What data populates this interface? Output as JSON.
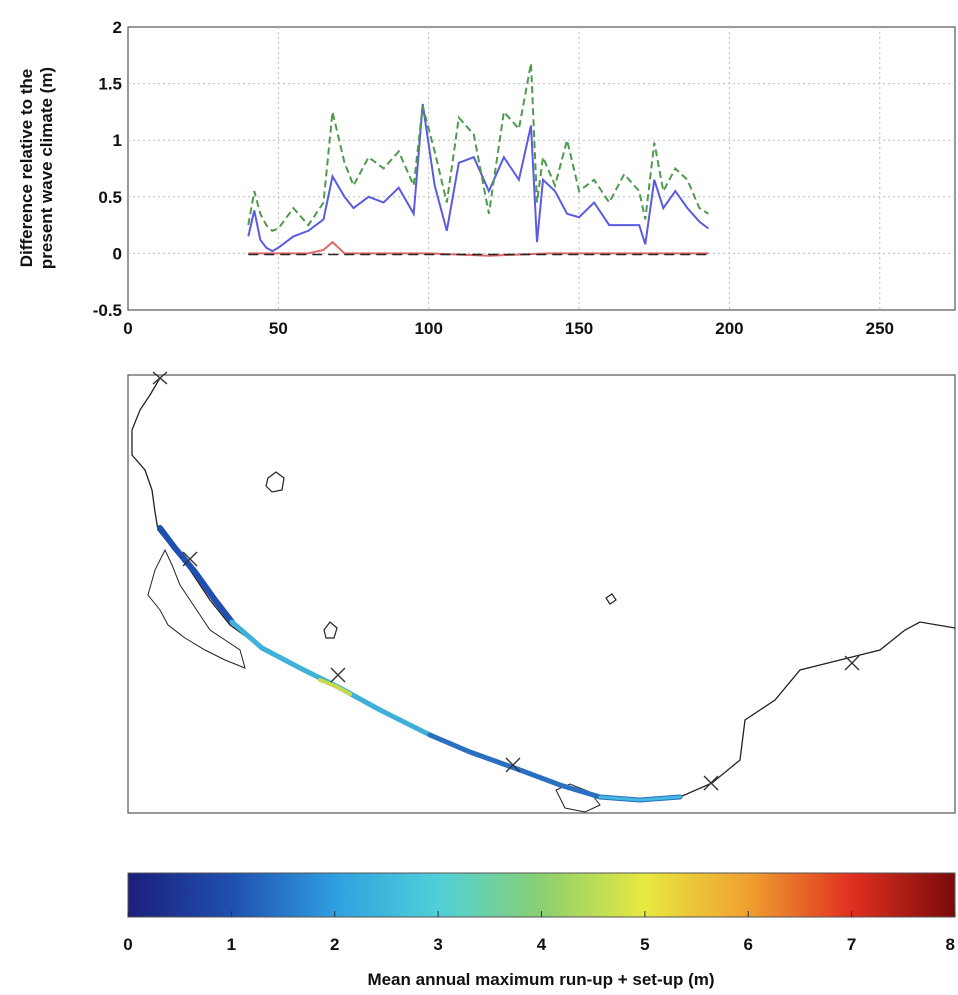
{
  "chart_data": [
    {
      "type": "line",
      "ylabel_lines": [
        "Difference relative to the",
        "present wave climate (m)"
      ],
      "xlim": [
        0,
        275
      ],
      "ylim": [
        -0.5,
        2
      ],
      "xticks": [
        0,
        50,
        100,
        150,
        200,
        250
      ],
      "yticks": [
        -0.5,
        0,
        0.5,
        1,
        1.5,
        2
      ],
      "ytick_labels": [
        "-0.5",
        "0",
        "0.5",
        "1",
        "1.5",
        "2"
      ],
      "grid": true,
      "series": [
        {
          "color": "#5b5be0",
          "style": "solid",
          "x": [
            40,
            42,
            44,
            46,
            48,
            50,
            55,
            60,
            65,
            68,
            72,
            75,
            80,
            85,
            90,
            95,
            98,
            102,
            106,
            110,
            115,
            120,
            125,
            130,
            134,
            136,
            138,
            142,
            146,
            150,
            155,
            160,
            165,
            170,
            172,
            175,
            178,
            182,
            186,
            190,
            193
          ],
          "y": [
            0.15,
            0.38,
            0.12,
            0.05,
            0.02,
            0.05,
            0.15,
            0.2,
            0.3,
            0.68,
            0.5,
            0.4,
            0.5,
            0.45,
            0.58,
            0.35,
            1.32,
            0.6,
            0.2,
            0.8,
            0.85,
            0.55,
            0.85,
            0.65,
            1.13,
            0.1,
            0.65,
            0.55,
            0.35,
            0.32,
            0.45,
            0.25,
            0.25,
            0.25,
            0.08,
            0.65,
            0.4,
            0.55,
            0.4,
            0.28,
            0.22
          ]
        },
        {
          "color": "#4f9a4f",
          "style": "dashed",
          "x": [
            40,
            42,
            44,
            46,
            48,
            50,
            55,
            60,
            65,
            68,
            72,
            75,
            80,
            85,
            90,
            95,
            98,
            102,
            106,
            110,
            115,
            120,
            125,
            130,
            134,
            136,
            138,
            142,
            146,
            150,
            155,
            160,
            165,
            170,
            172,
            175,
            178,
            182,
            186,
            190,
            193
          ],
          "y": [
            0.25,
            0.55,
            0.35,
            0.25,
            0.2,
            0.22,
            0.4,
            0.25,
            0.45,
            1.25,
            0.8,
            0.6,
            0.85,
            0.75,
            0.9,
            0.6,
            1.3,
            0.9,
            0.45,
            1.2,
            1.05,
            0.35,
            1.25,
            1.1,
            1.68,
            0.45,
            0.85,
            0.6,
            1.0,
            0.55,
            0.65,
            0.45,
            0.7,
            0.55,
            0.3,
            0.98,
            0.55,
            0.75,
            0.65,
            0.4,
            0.35
          ]
        },
        {
          "color": "#e06a6a",
          "style": "solid",
          "x": [
            40,
            50,
            60,
            65,
            68,
            72,
            80,
            100,
            120,
            140,
            160,
            180,
            193
          ],
          "y": [
            0.0,
            0.0,
            0.0,
            0.03,
            0.1,
            0.0,
            0.0,
            0.0,
            -0.02,
            0.0,
            0.0,
            0.0,
            0.0
          ]
        },
        {
          "color": "#222222",
          "style": "dashed",
          "x": [
            40,
            193
          ],
          "y": [
            -0.01,
            -0.01
          ]
        }
      ]
    },
    {
      "type": "heatmap",
      "colorbar_label": "Mean annual maximum run-up + set-up (m)",
      "colorbar_range": [
        0,
        8
      ],
      "colorbar_ticks": [
        "0",
        "1",
        "2",
        "3",
        "4",
        "5",
        "6",
        "7",
        "8"
      ],
      "colormap": [
        "#1b1f7a",
        "#1f4fb0",
        "#2f9fe0",
        "#4fd0d8",
        "#8ad070",
        "#e8e840",
        "#f0a030",
        "#e03020",
        "#7a0a0a"
      ]
    }
  ]
}
